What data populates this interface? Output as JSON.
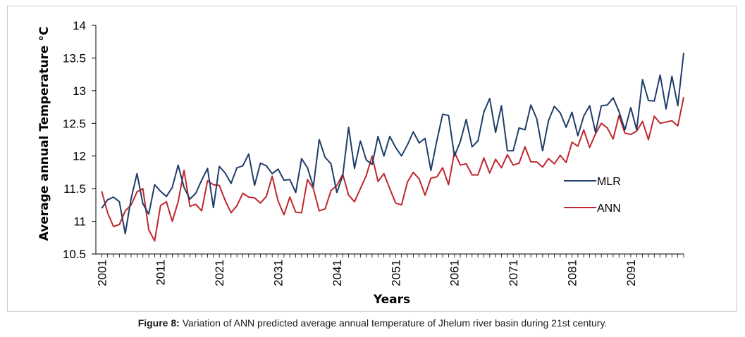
{
  "caption": {
    "label": "Figure 8:",
    "text": "Variation of ANN predicted average annual temperature of Jhelum river basin during 21st century."
  },
  "chart_data": {
    "type": "line",
    "xlabel": "Years",
    "ylabel": "Average annual Temperature °C",
    "ylim": [
      10.5,
      14
    ],
    "yticks": [
      "10.5",
      "11",
      "11.5",
      "12",
      "12.5",
      "13",
      "13.5",
      "14"
    ],
    "xticks": [
      "2001",
      "2011",
      "2021",
      "2031",
      "2041",
      "2051",
      "2061",
      "2071",
      "2081",
      "2091"
    ],
    "grid": false,
    "legend_position": "right",
    "x": [
      2001,
      2002,
      2003,
      2004,
      2005,
      2006,
      2007,
      2008,
      2009,
      2010,
      2011,
      2012,
      2013,
      2014,
      2015,
      2016,
      2017,
      2018,
      2019,
      2020,
      2021,
      2022,
      2023,
      2024,
      2025,
      2026,
      2027,
      2028,
      2029,
      2030,
      2031,
      2032,
      2033,
      2034,
      2035,
      2036,
      2037,
      2038,
      2039,
      2040,
      2041,
      2042,
      2043,
      2044,
      2045,
      2046,
      2047,
      2048,
      2049,
      2050,
      2051,
      2052,
      2053,
      2054,
      2055,
      2056,
      2057,
      2058,
      2059,
      2060,
      2061,
      2062,
      2063,
      2064,
      2065,
      2066,
      2067,
      2068,
      2069,
      2070,
      2071,
      2072,
      2073,
      2074,
      2075,
      2076,
      2077,
      2078,
      2079,
      2080,
      2081,
      2082,
      2083,
      2084,
      2085,
      2086,
      2087,
      2088,
      2089,
      2090,
      2091,
      2092,
      2093,
      2094,
      2095,
      2096,
      2097,
      2098,
      2099,
      2100
    ],
    "series": [
      {
        "name": "MLR",
        "color": "#1f3d6b",
        "values": [
          11.2,
          11.33,
          11.37,
          11.3,
          10.81,
          11.35,
          11.73,
          11.27,
          11.11,
          11.56,
          11.46,
          11.38,
          11.52,
          11.86,
          11.52,
          11.34,
          11.43,
          11.63,
          11.81,
          11.21,
          11.84,
          11.74,
          11.58,
          11.82,
          11.85,
          12.03,
          11.55,
          11.89,
          11.85,
          11.73,
          11.8,
          11.63,
          11.64,
          11.44,
          11.96,
          11.82,
          11.53,
          12.25,
          11.98,
          11.88,
          11.44,
          11.7,
          12.44,
          11.81,
          12.23,
          11.94,
          11.87,
          12.3,
          12.0,
          12.3,
          12.13,
          12.0,
          12.17,
          12.37,
          12.2,
          12.27,
          11.78,
          12.23,
          12.64,
          12.62,
          12.0,
          12.22,
          12.56,
          12.14,
          12.23,
          12.67,
          12.88,
          12.36,
          12.77,
          12.08,
          12.08,
          12.43,
          12.4,
          12.78,
          12.57,
          12.08,
          12.54,
          12.76,
          12.66,
          12.44,
          12.67,
          12.31,
          12.61,
          12.77,
          12.36,
          12.77,
          12.78,
          12.89,
          12.68,
          12.4,
          12.74,
          12.4,
          13.17,
          12.85,
          12.84,
          13.24,
          12.72,
          13.22,
          12.77,
          13.58
        ]
      },
      {
        "name": "ANN",
        "color": "#c0262d",
        "values": [
          11.46,
          11.13,
          10.92,
          10.95,
          11.16,
          11.25,
          11.45,
          11.5,
          10.87,
          10.7,
          11.24,
          11.3,
          11.0,
          11.3,
          11.78,
          11.23,
          11.26,
          11.16,
          11.62,
          11.56,
          11.55,
          11.32,
          11.13,
          11.24,
          11.43,
          11.37,
          11.36,
          11.28,
          11.38,
          11.69,
          11.31,
          11.1,
          11.37,
          11.14,
          11.13,
          11.64,
          11.5,
          11.16,
          11.19,
          11.47,
          11.55,
          11.72,
          11.4,
          11.3,
          11.5,
          11.7,
          12.0,
          11.61,
          11.73,
          11.5,
          11.28,
          11.25,
          11.6,
          11.75,
          11.65,
          11.4,
          11.66,
          11.68,
          11.82,
          11.56,
          12.06,
          11.86,
          11.88,
          11.71,
          11.71,
          11.97,
          11.74,
          11.95,
          11.82,
          12.02,
          11.86,
          11.89,
          12.14,
          11.91,
          11.91,
          11.83,
          11.96,
          11.88,
          12.01,
          11.9,
          12.21,
          12.15,
          12.4,
          12.13,
          12.34,
          12.5,
          12.43,
          12.26,
          12.62,
          12.35,
          12.33,
          12.38,
          12.53,
          12.25,
          12.61,
          12.5,
          12.52,
          12.54,
          12.46,
          12.9
        ]
      }
    ]
  }
}
